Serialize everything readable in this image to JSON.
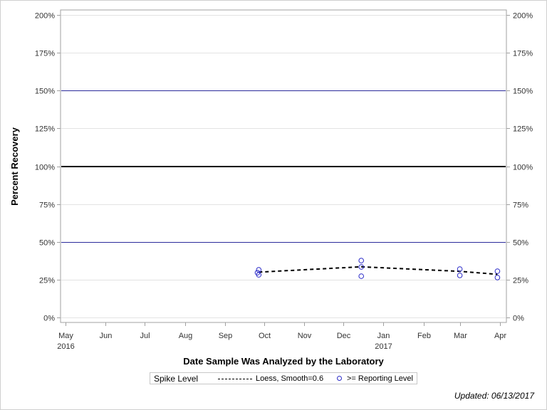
{
  "chart_data": {
    "type": "scatter",
    "title": "",
    "xlabel": "Date Sample Was Analyzed by the Laboratory",
    "ylabel": "Percent Recovery",
    "ylim": [
      0,
      200
    ],
    "y_ticks": [
      "0%",
      "25%",
      "50%",
      "75%",
      "100%",
      "125%",
      "150%",
      "175%",
      "200%"
    ],
    "y_tick_values": [
      0,
      25,
      50,
      75,
      100,
      125,
      150,
      175,
      200
    ],
    "x_ticks": [
      {
        "label": "May",
        "sub": "2016"
      },
      {
        "label": "Jun",
        "sub": ""
      },
      {
        "label": "Jul",
        "sub": ""
      },
      {
        "label": "Aug",
        "sub": ""
      },
      {
        "label": "Sep",
        "sub": ""
      },
      {
        "label": "Oct",
        "sub": ""
      },
      {
        "label": "Nov",
        "sub": ""
      },
      {
        "label": "Dec",
        "sub": ""
      },
      {
        "label": "Jan",
        "sub": "2017"
      },
      {
        "label": "Feb",
        "sub": ""
      },
      {
        "label": "Mar",
        "sub": ""
      },
      {
        "label": "Apr",
        "sub": ""
      }
    ],
    "xlim": [
      "2016-05-01",
      "2017-04-01"
    ],
    "grid": true,
    "reference_lines": [
      {
        "y": 150,
        "color": "#2b2b9c",
        "width": 1
      },
      {
        "y": 100,
        "color": "#000000",
        "width": 2
      },
      {
        "y": 50,
        "color": "#2b2b9c",
        "width": 1
      }
    ],
    "series": [
      {
        "name": ">= Reporting Level",
        "kind": "scatter",
        "marker": "open-circle",
        "color": "#2b2bc8",
        "points": [
          {
            "x": "2016-09-27",
            "y": 31.5
          },
          {
            "x": "2016-09-26",
            "y": 29.6
          },
          {
            "x": "2016-09-27",
            "y": 28.2
          },
          {
            "x": "2016-12-15",
            "y": 37.6
          },
          {
            "x": "2016-12-15",
            "y": 33.4
          },
          {
            "x": "2016-12-15",
            "y": 27.3
          },
          {
            "x": "2017-03-01",
            "y": 32.0
          },
          {
            "x": "2017-03-01",
            "y": 27.8
          },
          {
            "x": "2017-03-30",
            "y": 30.6
          },
          {
            "x": "2017-03-30",
            "y": 26.4
          }
        ]
      },
      {
        "name": "Loess, Smooth=0.6",
        "kind": "line",
        "style": "dashed",
        "color": "#000000",
        "points": [
          {
            "x": "2016-09-27",
            "y": 30.0
          },
          {
            "x": "2016-12-15",
            "y": 33.5
          },
          {
            "x": "2017-03-01",
            "y": 30.5
          },
          {
            "x": "2017-03-30",
            "y": 28.5
          }
        ]
      }
    ],
    "legend": {
      "title": "Spike Level",
      "position": "bottom",
      "entries": [
        "Loess, Smooth=0.6",
        ">= Reporting Level"
      ]
    }
  },
  "legend": {
    "title": "Spike Level",
    "loess_label": "Loess, Smooth=0.6",
    "points_label": ">= Reporting Level"
  },
  "axis": {
    "x_title": "Date Sample Was Analyzed by the Laboratory",
    "y_title": "Percent Recovery"
  },
  "footer": {
    "updated": "Updated: 06/13/2017"
  }
}
